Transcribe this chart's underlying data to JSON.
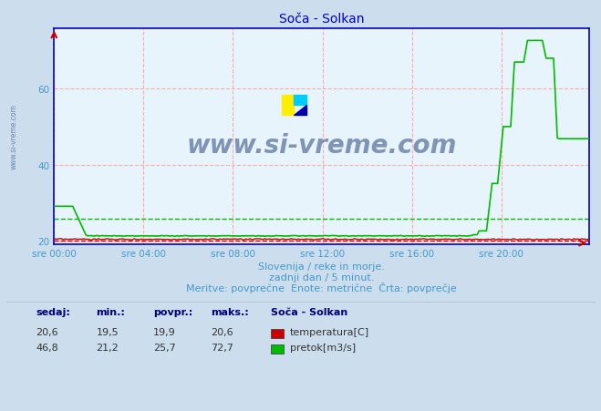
{
  "title": "Soča - Solkan",
  "bg_color": "#ccdded",
  "plot_bg_color": "#e8f4fc",
  "grid_color": "#ffaaaa",
  "axis_color": "#0000cc",
  "title_color": "#0000cc",
  "label_color": "#4499cc",
  "temp_color": "#cc0000",
  "flow_color": "#00bb00",
  "avg_temp": 19.9,
  "avg_flow": 25.7,
  "ylim_min": 19.0,
  "ylim_max": 76,
  "yticks": [
    20,
    40,
    60
  ],
  "n_points": 288,
  "xtick_positions": [
    0,
    48,
    96,
    144,
    192,
    240
  ],
  "xtick_labels": [
    "sre 00:00",
    "sre 04:00",
    "sre 08:00",
    "sre 12:00",
    "sre 16:00",
    "sre 20:00"
  ],
  "footer_line1": "Slovenija / reke in morje.",
  "footer_line2": "zadnji dan / 5 minut.",
  "footer_line3": "Meritve: povprečne  Enote: metrične  Črta: povprečje",
  "legend_title": "Soča - Solkan",
  "label_temp": "temperatura[C]",
  "label_flow": "pretok[m3/s]",
  "table_headers": [
    "sedaj:",
    "min.:",
    "povpr.:",
    "maks.:"
  ],
  "table_temp": [
    "20,6",
    "19,5",
    "19,9",
    "20,6"
  ],
  "table_flow": [
    "46,8",
    "21,2",
    "25,7",
    "72,7"
  ],
  "sidebar_text": "www.si-vreme.com"
}
